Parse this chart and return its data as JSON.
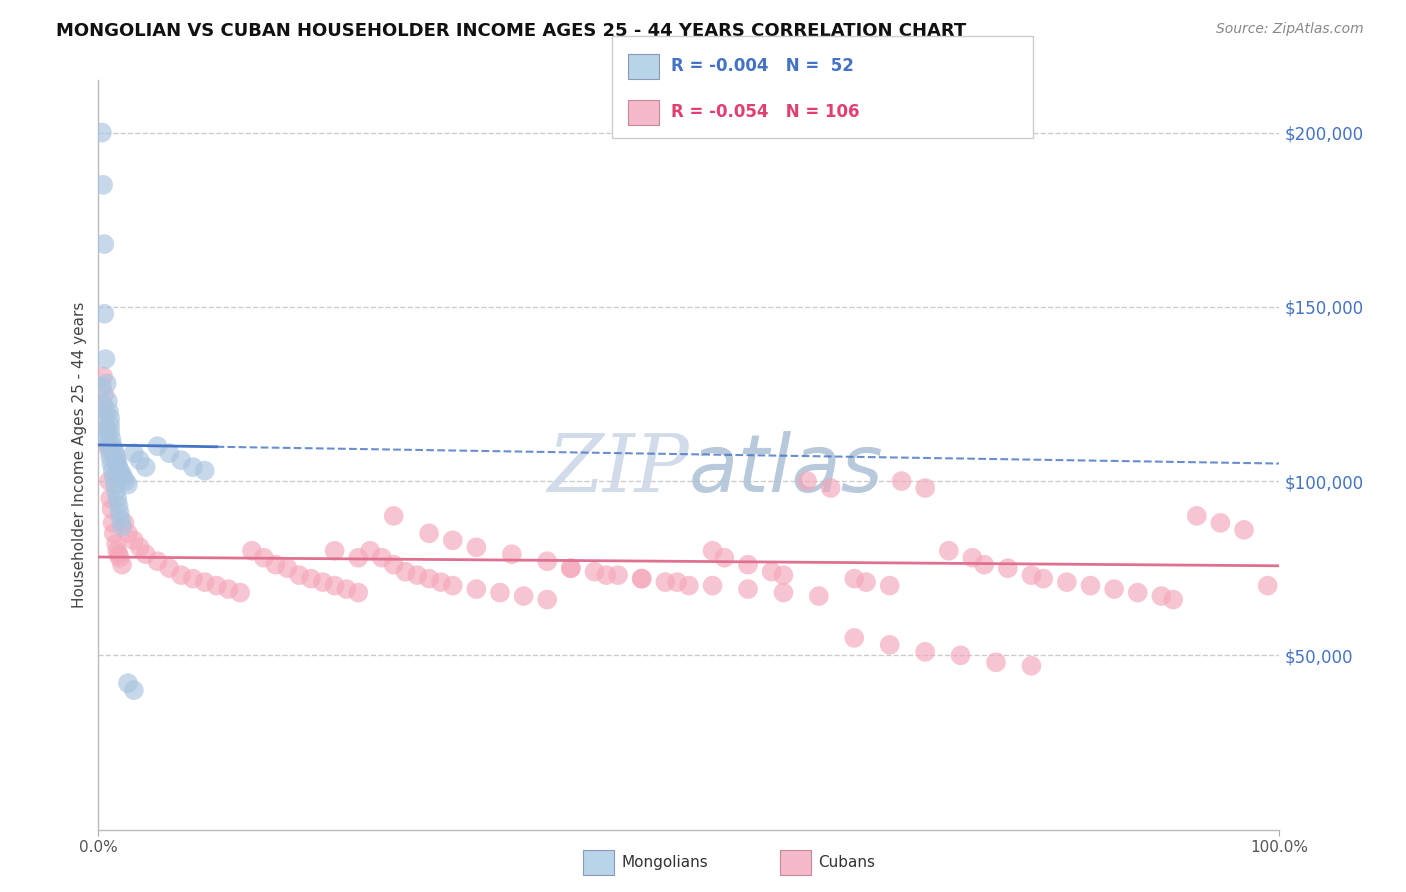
{
  "title": "MONGOLIAN VS CUBAN HOUSEHOLDER INCOME AGES 25 - 44 YEARS CORRELATION CHART",
  "source": "Source: ZipAtlas.com",
  "ylabel": "Householder Income Ages 25 - 44 years",
  "mongolian_R": -0.004,
  "mongolian_N": 52,
  "cuban_R": -0.054,
  "cuban_N": 106,
  "mongolian_color": "#a8c4e0",
  "mongolian_line_color": "#4472c4",
  "cuban_color": "#f4a7b9",
  "cuban_line_color": "#e07090",
  "legend_box_color_mongolian": "#b8d4e8",
  "legend_box_color_cuban": "#f4b8c8",
  "watermark_color": "#cdd8e8",
  "mongolian_x": [
    0.3,
    0.4,
    0.5,
    0.5,
    0.6,
    0.7,
    0.8,
    0.9,
    1.0,
    1.0,
    1.0,
    1.1,
    1.2,
    1.3,
    1.4,
    1.5,
    1.5,
    1.6,
    1.7,
    1.8,
    2.0,
    2.1,
    2.3,
    2.5,
    3.0,
    3.5,
    4.0,
    5.0,
    6.0,
    7.0,
    8.0,
    9.0,
    0.3,
    0.4,
    0.5,
    0.6,
    0.7,
    0.8,
    0.9,
    1.0,
    1.1,
    1.2,
    1.3,
    1.4,
    1.5,
    1.6,
    1.7,
    1.8,
    1.9,
    2.0,
    2.5,
    3.0
  ],
  "mongolian_y": [
    200000,
    185000,
    168000,
    148000,
    135000,
    128000,
    123000,
    120000,
    118000,
    116000,
    114000,
    112000,
    110000,
    109000,
    108000,
    107000,
    106000,
    105000,
    104000,
    103000,
    102000,
    101000,
    100000,
    99000,
    108000,
    106000,
    104000,
    110000,
    108000,
    106000,
    104000,
    103000,
    127000,
    122000,
    118000,
    115000,
    113000,
    111000,
    109000,
    107000,
    105000,
    103000,
    101000,
    99000,
    97000,
    95000,
    93000,
    91000,
    89000,
    87000,
    42000,
    40000
  ],
  "cuban_x": [
    0.4,
    0.5,
    0.6,
    0.7,
    0.8,
    0.9,
    1.0,
    1.1,
    1.2,
    1.3,
    1.5,
    1.6,
    1.7,
    1.8,
    2.0,
    2.2,
    2.5,
    3.0,
    3.5,
    4.0,
    5.0,
    6.0,
    7.0,
    8.0,
    9.0,
    10.0,
    11.0,
    12.0,
    13.0,
    14.0,
    15.0,
    16.0,
    17.0,
    18.0,
    19.0,
    20.0,
    21.0,
    22.0,
    23.0,
    24.0,
    25.0,
    26.0,
    27.0,
    28.0,
    29.0,
    30.0,
    32.0,
    34.0,
    36.0,
    38.0,
    40.0,
    42.0,
    44.0,
    46.0,
    48.0,
    50.0,
    52.0,
    53.0,
    55.0,
    57.0,
    58.0,
    60.0,
    62.0,
    64.0,
    65.0,
    67.0,
    68.0,
    70.0,
    72.0,
    74.0,
    75.0,
    77.0,
    79.0,
    80.0,
    82.0,
    84.0,
    86.0,
    88.0,
    90.0,
    91.0,
    93.0,
    95.0,
    97.0,
    99.0,
    20.0,
    22.0,
    25.0,
    28.0,
    30.0,
    32.0,
    35.0,
    38.0,
    40.0,
    43.0,
    46.0,
    49.0,
    52.0,
    55.0,
    58.0,
    61.0,
    64.0,
    67.0,
    70.0,
    73.0,
    76.0,
    79.0
  ],
  "cuban_y": [
    130000,
    125000,
    120000,
    115000,
    110000,
    100000,
    95000,
    92000,
    88000,
    85000,
    82000,
    80000,
    79000,
    78000,
    76000,
    88000,
    85000,
    83000,
    81000,
    79000,
    77000,
    75000,
    73000,
    72000,
    71000,
    70000,
    69000,
    68000,
    80000,
    78000,
    76000,
    75000,
    73000,
    72000,
    71000,
    70000,
    69000,
    68000,
    80000,
    78000,
    76000,
    74000,
    73000,
    72000,
    71000,
    70000,
    69000,
    68000,
    67000,
    66000,
    75000,
    74000,
    73000,
    72000,
    71000,
    70000,
    80000,
    78000,
    76000,
    74000,
    73000,
    100000,
    98000,
    72000,
    71000,
    70000,
    100000,
    98000,
    80000,
    78000,
    76000,
    75000,
    73000,
    72000,
    71000,
    70000,
    69000,
    68000,
    67000,
    66000,
    90000,
    88000,
    86000,
    70000,
    80000,
    78000,
    90000,
    85000,
    83000,
    81000,
    79000,
    77000,
    75000,
    73000,
    72000,
    71000,
    70000,
    69000,
    68000,
    67000,
    55000,
    53000,
    51000,
    50000,
    48000,
    47000
  ]
}
